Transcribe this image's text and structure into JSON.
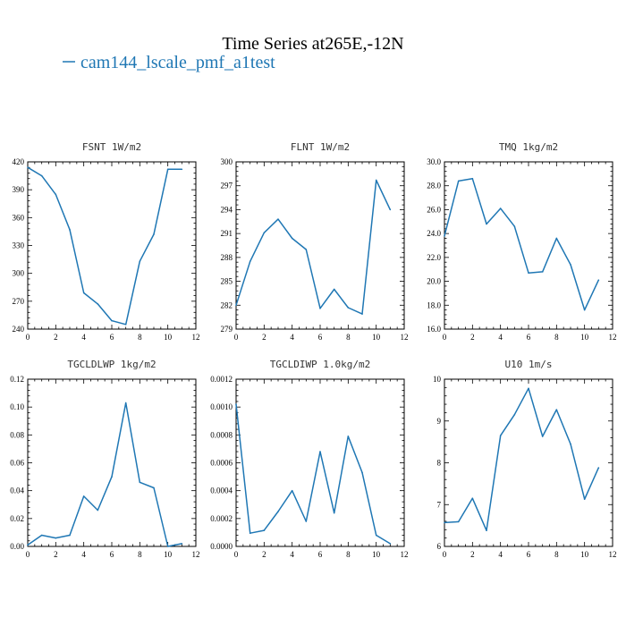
{
  "title": "Time Series at265E,-12N",
  "legend": {
    "label": "cam144_lscale_pmf_a1test",
    "color": "#1f77b4"
  },
  "chart_data": [
    {
      "type": "line",
      "title": "FSNT  1W/m2",
      "xlim": [
        0,
        12
      ],
      "xticks": [
        0,
        2,
        4,
        6,
        8,
        10,
        12
      ],
      "ylim": [
        240,
        420
      ],
      "yticks": [
        "240",
        "270",
        "300",
        "330",
        "360",
        "390",
        "420"
      ],
      "x": [
        0,
        1,
        2,
        3,
        4,
        5,
        6,
        7,
        8,
        9,
        10,
        11
      ],
      "y": [
        414,
        405,
        385,
        347,
        279,
        267,
        249,
        245,
        313,
        342,
        412,
        412
      ]
    },
    {
      "type": "line",
      "title": "FLNT  1W/m2",
      "xlim": [
        0,
        12
      ],
      "xticks": [
        0,
        2,
        4,
        6,
        8,
        10,
        12
      ],
      "ylim": [
        279,
        300
      ],
      "yticks": [
        "279",
        "282",
        "285",
        "288",
        "291",
        "294",
        "297",
        "300"
      ],
      "x": [
        0,
        1,
        2,
        3,
        4,
        5,
        6,
        7,
        8,
        9,
        10,
        11
      ],
      "y": [
        282.0,
        287.5,
        291.1,
        292.8,
        290.4,
        289.0,
        281.6,
        284.0,
        281.7,
        280.9,
        297.7,
        294.0
      ]
    },
    {
      "type": "line",
      "title": "TMQ  1kg/m2",
      "xlim": [
        0,
        12
      ],
      "xticks": [
        0,
        2,
        4,
        6,
        8,
        10,
        12
      ],
      "ylim": [
        16.0,
        30.0
      ],
      "yticks": [
        "16.0",
        "18.0",
        "20.0",
        "22.0",
        "24.0",
        "26.0",
        "28.0",
        "30.0"
      ],
      "x": [
        0,
        1,
        2,
        3,
        4,
        5,
        6,
        7,
        8,
        9,
        10,
        11
      ],
      "y": [
        23.8,
        28.4,
        28.6,
        24.8,
        26.1,
        24.6,
        20.7,
        20.8,
        23.6,
        21.4,
        17.6,
        20.1
      ]
    },
    {
      "type": "line",
      "title": "TGCLDLWP  1kg/m2",
      "xlim": [
        0,
        12
      ],
      "xticks": [
        0,
        2,
        4,
        6,
        8,
        10,
        12
      ],
      "ylim": [
        0,
        0.12
      ],
      "yticks": [
        "0.00",
        "0.02",
        "0.04",
        "0.06",
        "0.08",
        "0.10",
        "0.12"
      ],
      "x": [
        0,
        1,
        2,
        3,
        4,
        5,
        6,
        7,
        8,
        9,
        10,
        11
      ],
      "y": [
        0.001,
        0.008,
        0.006,
        0.008,
        0.036,
        0.026,
        0.05,
        0.103,
        0.046,
        0.042,
        0.0,
        0.002
      ]
    },
    {
      "type": "line",
      "title": "TGCLDIWP  1.0kg/m2",
      "xlim": [
        0,
        12
      ],
      "xticks": [
        0,
        2,
        4,
        6,
        8,
        10,
        12
      ],
      "ylim": [
        0,
        0.0012
      ],
      "yticks": [
        "0.0000",
        "0.0002",
        "0.0004",
        "0.0006",
        "0.0008",
        "0.0010",
        "0.0012"
      ],
      "x": [
        0,
        1,
        2,
        3,
        4,
        5,
        6,
        7,
        8,
        9,
        10,
        11
      ],
      "y": [
        0.00102,
        9.5e-05,
        0.000115,
        0.00025,
        0.0004,
        0.00018,
        0.00068,
        0.00024,
        0.00079,
        0.00053,
        8e-05,
        2e-05
      ]
    },
    {
      "type": "line",
      "title": "U10  1m/s",
      "xlim": [
        0,
        12
      ],
      "xticks": [
        0,
        2,
        4,
        6,
        8,
        10,
        12
      ],
      "ylim": [
        6,
        10
      ],
      "yticks": [
        "6",
        "7",
        "8",
        "9",
        "10"
      ],
      "x": [
        0,
        1,
        2,
        3,
        4,
        5,
        6,
        7,
        8,
        9,
        10,
        11
      ],
      "y": [
        6.57,
        6.59,
        7.15,
        6.38,
        8.65,
        9.15,
        9.78,
        8.63,
        9.27,
        8.45,
        7.13,
        7.88
      ]
    }
  ]
}
